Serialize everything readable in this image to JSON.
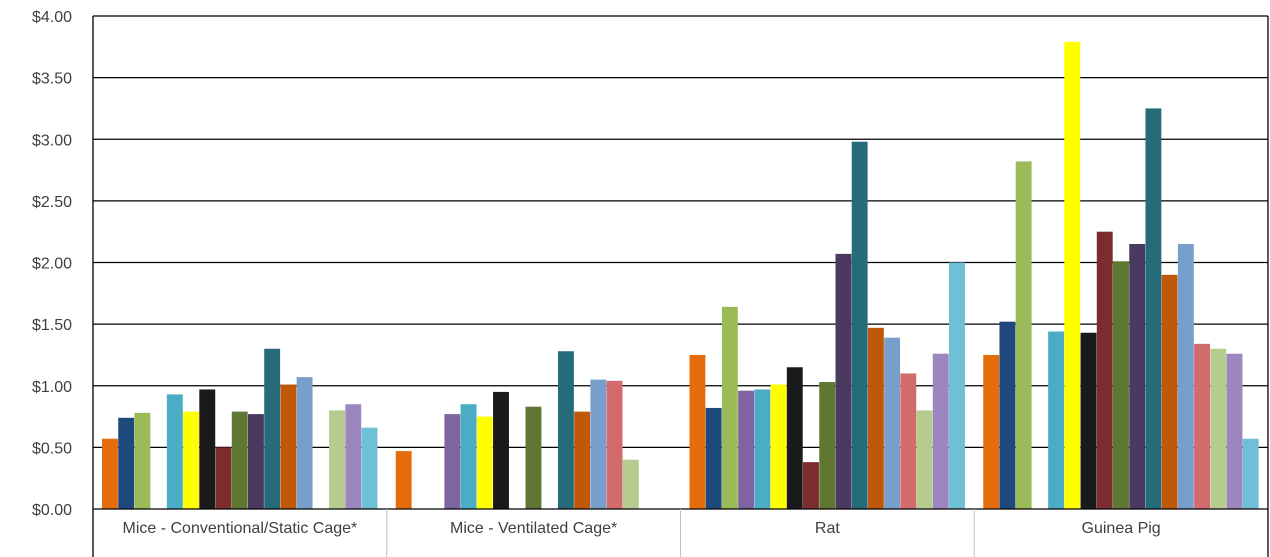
{
  "chart_data": {
    "type": "bar",
    "title": "",
    "xlabel": "",
    "ylabel": "",
    "ylim": [
      0,
      4
    ],
    "y_ticks": [
      "$0.00",
      "$0.50",
      "$1.00",
      "$1.50",
      "$2.00",
      "$2.50",
      "$3.00",
      "$3.50",
      "$4.00"
    ],
    "y_tick_values": [
      0,
      0.5,
      1.0,
      1.5,
      2.0,
      2.5,
      3.0,
      3.5,
      4.0
    ],
    "grid": true,
    "legend": "none",
    "categories": [
      "Mice - Conventional/Static Cage*",
      "Mice - Ventilated Cage*",
      "Rat",
      "Guinea Pig"
    ],
    "series": [
      {
        "color": "#E46C0A",
        "values": [
          0.57,
          0.47,
          1.25,
          1.25
        ]
      },
      {
        "color": "#1F497D",
        "values": [
          0.74,
          null,
          0.82,
          1.52
        ]
      },
      {
        "color": "#9BBB59",
        "values": [
          0.78,
          null,
          1.64,
          2.82
        ]
      },
      {
        "color": "#8064A2",
        "values": [
          null,
          0.77,
          0.96,
          null
        ]
      },
      {
        "color": "#4BACC6",
        "values": [
          0.93,
          0.85,
          0.97,
          1.44
        ]
      },
      {
        "color": "#FFFF00",
        "values": [
          0.79,
          0.75,
          1.01,
          3.79
        ]
      },
      {
        "color": "#1A1A1A",
        "values": [
          0.97,
          0.95,
          1.15,
          1.43
        ]
      },
      {
        "color": "#7B2C2C",
        "values": [
          0.5,
          null,
          0.38,
          2.25
        ]
      },
      {
        "color": "#5F7733",
        "values": [
          0.79,
          0.83,
          1.03,
          2.01
        ]
      },
      {
        "color": "#4A3A60",
        "values": [
          0.77,
          null,
          2.07,
          2.15
        ]
      },
      {
        "color": "#256B7A",
        "values": [
          1.3,
          1.28,
          2.98,
          3.25
        ]
      },
      {
        "color": "#C0580A",
        "values": [
          1.01,
          0.79,
          1.47,
          1.9
        ]
      },
      {
        "color": "#789FCC",
        "values": [
          1.07,
          1.05,
          1.39,
          2.15
        ]
      },
      {
        "color": "#D26B6B",
        "values": [
          null,
          1.04,
          1.1,
          1.34
        ]
      },
      {
        "color": "#B5CC8E",
        "values": [
          0.8,
          0.4,
          0.8,
          1.3
        ]
      },
      {
        "color": "#9B86BD",
        "values": [
          0.85,
          null,
          1.26,
          1.26
        ]
      },
      {
        "color": "#6EC0D6",
        "values": [
          0.66,
          null,
          2.0,
          0.57
        ]
      }
    ]
  }
}
